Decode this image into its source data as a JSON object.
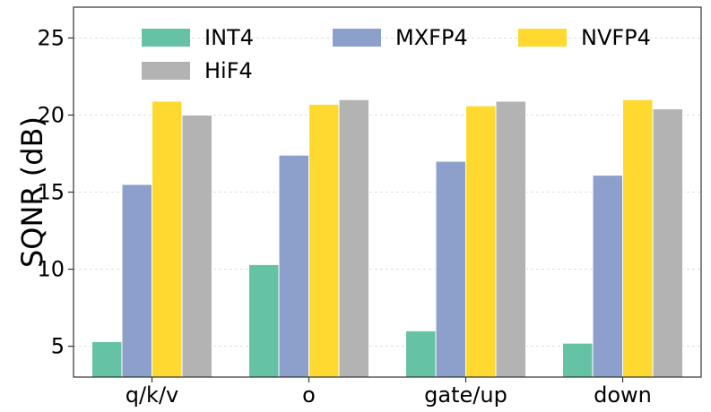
{
  "chart_data": {
    "type": "bar",
    "title": "",
    "xlabel": "",
    "ylabel": "SQNR (dB)",
    "categories": [
      "q/k/v",
      "o",
      "gate/up",
      "down"
    ],
    "yticks": [
      "5",
      "10",
      "15",
      "20",
      "25"
    ],
    "ylim": [
      3,
      27
    ],
    "grid": true,
    "legend_placement": "top",
    "series": [
      {
        "name": "INT4",
        "color": "#66c2a5",
        "values": [
          5.3,
          10.3,
          6.0,
          5.2
        ]
      },
      {
        "name": "MXFP4",
        "color": "#8da0cb",
        "values": [
          15.5,
          17.4,
          17.0,
          16.1
        ]
      },
      {
        "name": "NVFP4",
        "color": "#ffd92f",
        "values": [
          20.9,
          20.7,
          20.6,
          21.0
        ]
      },
      {
        "name": "HiF4",
        "color": "#b3b3b3",
        "values": [
          20.0,
          21.0,
          20.9,
          20.4
        ]
      }
    ]
  }
}
